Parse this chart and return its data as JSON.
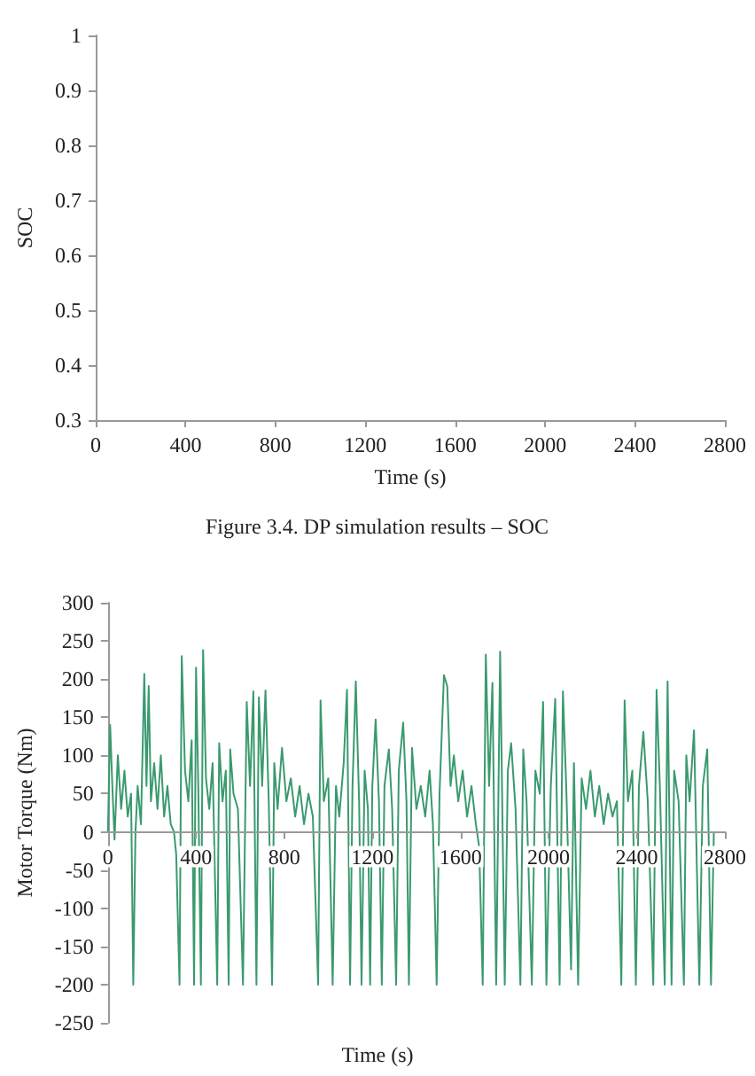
{
  "chart_data": [
    {
      "type": "line",
      "xlabel": "Time (s)",
      "ylabel": "SOC",
      "xlim": [
        0,
        2800
      ],
      "xticks": [
        0,
        400,
        800,
        1200,
        1600,
        2000,
        2400,
        2800
      ],
      "ylim": [
        0.3,
        1
      ],
      "yticks": [
        0.3,
        0.4,
        0.5,
        0.6,
        0.7,
        0.8,
        0.9,
        1
      ],
      "annotations": [
        "Figure 3.4. DP simulation results – SOC"
      ]
    },
    {
      "type": "line",
      "xlabel": "Time (s)",
      "ylabel": "Motor Torque (Nm)",
      "xlim": [
        0,
        2800
      ],
      "xticks": [
        0,
        400,
        800,
        1200,
        1600,
        2000,
        2400,
        2800
      ],
      "ylim": [
        -250,
        300
      ],
      "yticks": [
        -250,
        -200,
        -150,
        -100,
        -50,
        0,
        50,
        100,
        150,
        200,
        250,
        300
      ],
      "marker": "none",
      "x": [
        0,
        10,
        20,
        30,
        45,
        60,
        75,
        90,
        105,
        115,
        125,
        135,
        150,
        165,
        175,
        185,
        195,
        210,
        225,
        240,
        255,
        270,
        285,
        300,
        310,
        325,
        335,
        350,
        365,
        380,
        391,
        400,
        410,
        422,
        432,
        445,
        460,
        475,
        496,
        505,
        520,
        535,
        548,
        555,
        570,
        590,
        613,
        630,
        645,
        660,
        674,
        685,
        700,
        715,
        730,
        745,
        755,
        770,
        790,
        810,
        830,
        850,
        870,
        890,
        910,
        930,
        954,
        965,
        980,
        1000,
        1020,
        1035,
        1050,
        1070,
        1085,
        1099,
        1110,
        1125,
        1140,
        1151,
        1165,
        1180,
        1190,
        1200,
        1215,
        1230,
        1243,
        1255,
        1275,
        1290,
        1308,
        1320,
        1340,
        1355,
        1366,
        1380,
        1400,
        1420,
        1440,
        1460,
        1475,
        1492,
        1505,
        1525,
        1540,
        1555,
        1570,
        1590,
        1610,
        1630,
        1650,
        1670,
        1685,
        1701,
        1715,
        1730,
        1745,
        1762,
        1780,
        1801,
        1815,
        1830,
        1850,
        1872,
        1885,
        1900,
        1924,
        1940,
        1960,
        1975,
        1990,
        2010,
        2030,
        2050,
        2065,
        2080,
        2102,
        2115,
        2134,
        2150,
        2170,
        2190,
        2210,
        2230,
        2250,
        2270,
        2290,
        2310,
        2330,
        2345,
        2360,
        2380,
        2396,
        2410,
        2430,
        2450,
        2475,
        2490,
        2505,
        2527,
        2540,
        2558,
        2570,
        2590,
        2614,
        2625,
        2640,
        2660,
        2684,
        2700,
        2720,
        2737,
        2750
      ],
      "series": [
        {
          "color": "#3a9a6e",
          "values": [
            0,
            140,
            60,
            -10,
            100,
            30,
            80,
            20,
            50,
            -200,
            0,
            60,
            10,
            207,
            60,
            191,
            40,
            90,
            30,
            100,
            20,
            60,
            10,
            0,
            -30,
            -200,
            230,
            80,
            40,
            120,
            -200,
            215,
            60,
            -200,
            238,
            70,
            30,
            90,
            -200,
            116,
            40,
            80,
            -200,
            108,
            50,
            30,
            -200,
            170,
            60,
            184,
            -200,
            176,
            60,
            185,
            40,
            -200,
            90,
            30,
            110,
            40,
            70,
            20,
            60,
            10,
            50,
            20,
            -200,
            172,
            40,
            70,
            -200,
            60,
            20,
            90,
            186,
            -200,
            60,
            197,
            40,
            -200,
            80,
            30,
            -200,
            60,
            147,
            40,
            -200,
            60,
            108,
            30,
            -200,
            80,
            143,
            40,
            -200,
            110,
            30,
            60,
            20,
            80,
            10,
            -200,
            50,
            205,
            191,
            60,
            100,
            40,
            80,
            20,
            60,
            10,
            -20,
            -200,
            232,
            60,
            195,
            -200,
            236,
            -200,
            80,
            116,
            30,
            -200,
            108,
            40,
            -200,
            80,
            50,
            170,
            -200,
            60,
            174,
            -200,
            184,
            60,
            -180,
            90,
            -200,
            70,
            30,
            80,
            20,
            60,
            10,
            50,
            20,
            40,
            -200,
            172,
            40,
            80,
            -200,
            60,
            131,
            40,
            -200,
            186,
            60,
            -200,
            197,
            -200,
            80,
            40,
            -200,
            100,
            40,
            133,
            -200,
            60,
            108,
            -200,
            0
          ]
        }
      ]
    }
  ]
}
